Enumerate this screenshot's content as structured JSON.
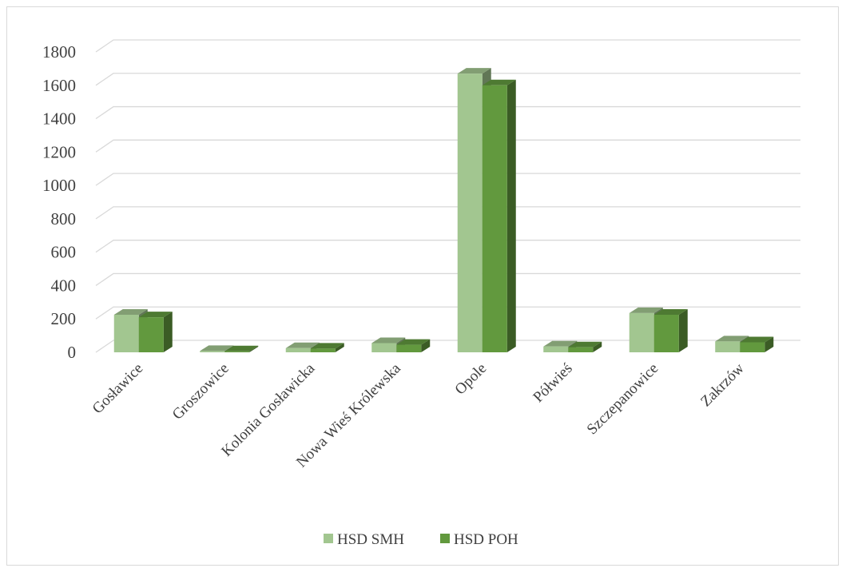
{
  "chart_data": {
    "type": "bar",
    "style": "3d-clustered-column",
    "categories": [
      "Gosławice",
      "Groszowice",
      "Kolonia Gosławicka",
      "Nowa Wieś Królewska",
      "Opole",
      "Półwieś",
      "Szczepanowice",
      "Zakrzów"
    ],
    "series": [
      {
        "name": "HSD SMH",
        "color": "#a2c690",
        "values": [
          225,
          8,
          25,
          55,
          1670,
          35,
          235,
          65
        ]
      },
      {
        "name": "HSD POH",
        "color": "#62993e",
        "values": [
          210,
          6,
          22,
          45,
          1600,
          30,
          225,
          60
        ]
      }
    ],
    "ylim": [
      0,
      1800
    ],
    "yticks": [
      0,
      200,
      400,
      600,
      800,
      1000,
      1200,
      1400,
      1600,
      1800
    ],
    "grid": true,
    "legend_position": "bottom"
  }
}
